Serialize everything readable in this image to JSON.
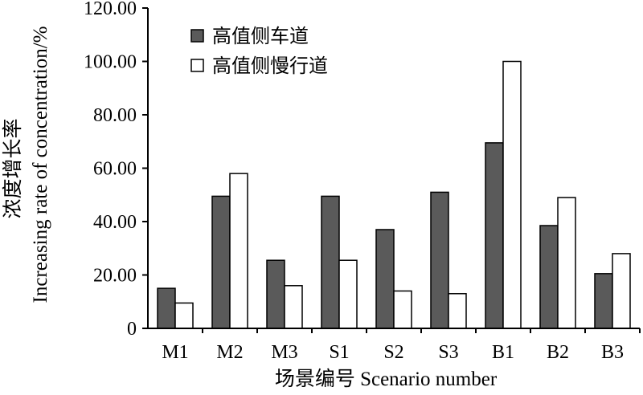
{
  "chart_data": {
    "type": "bar",
    "categories": [
      "M1",
      "M2",
      "M3",
      "S1",
      "S2",
      "S3",
      "B1",
      "B2",
      "B3"
    ],
    "series": [
      {
        "name": "高值侧车道",
        "color": "#5a5a5a",
        "values": [
          15,
          49.5,
          25.5,
          49.5,
          37,
          51,
          69.5,
          38.5,
          20.5
        ]
      },
      {
        "name": "高值侧慢行道",
        "color": "#ffffff",
        "values": [
          9.5,
          58,
          16,
          25.5,
          14,
          13,
          100,
          49,
          28
        ]
      }
    ],
    "ylim": [
      0,
      120
    ],
    "yticks": [
      0,
      20,
      40,
      60,
      80,
      100,
      120
    ],
    "ytick_labels": [
      "0",
      "20.00",
      "40.00",
      "60.00",
      "80.00",
      "100.00",
      "120.00"
    ],
    "xlabel": "场景编号 Scenario number",
    "ylabel_cn": "浓度增长率",
    "ylabel_en": "Increasing rate of concentration/%",
    "legend_position": "top-left",
    "grid": false
  }
}
